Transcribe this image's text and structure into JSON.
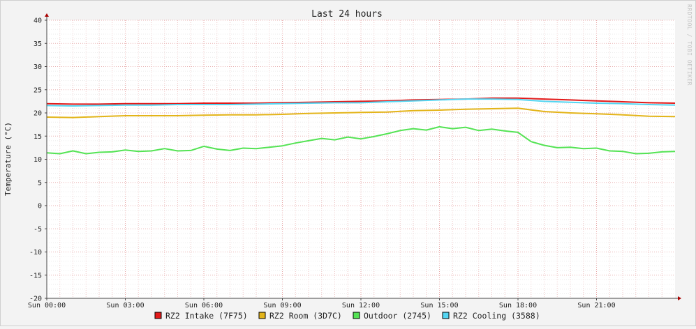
{
  "chart_data": {
    "type": "line",
    "title": "Last 24 hours",
    "ylabel": "Temperature (°C)",
    "xlabel": "",
    "watermark": "RRDTOOL / TOBI OETIKER",
    "ylim": [
      -20,
      40
    ],
    "y_ticks": [
      40,
      35,
      30,
      25,
      20,
      15,
      10,
      5,
      0,
      -5,
      -10,
      -15,
      -20
    ],
    "y_tick_labels": [
      "40",
      "35",
      "30",
      "25",
      "20",
      "15",
      "10",
      "5",
      "0",
      "-5",
      "-10",
      "-15",
      "-20"
    ],
    "xlim_hours": [
      0,
      24
    ],
    "x_ticks_hours": [
      0,
      3,
      6,
      9,
      12,
      15,
      18,
      21
    ],
    "x_tick_labels": [
      "Sun 00:00",
      "Sun 03:00",
      "Sun 06:00",
      "Sun 09:00",
      "Sun 12:00",
      "Sun 15:00",
      "Sun 18:00",
      "Sun 21:00"
    ],
    "grid": true,
    "legend_position": "bottom",
    "series": [
      {
        "name": "RZ2 Intake (7F75)",
        "color": "#e31919",
        "x": [
          0,
          1,
          2,
          3,
          4,
          5,
          6,
          7,
          8,
          9,
          10,
          11,
          12,
          13,
          14,
          15,
          16,
          17,
          18,
          19,
          20,
          21,
          22,
          23,
          24
        ],
        "values": [
          22.0,
          21.9,
          21.9,
          22.0,
          22.0,
          22.0,
          22.1,
          22.1,
          22.1,
          22.2,
          22.3,
          22.4,
          22.5,
          22.6,
          22.8,
          22.9,
          23.0,
          23.2,
          23.2,
          23.0,
          22.8,
          22.6,
          22.4,
          22.2,
          22.1
        ]
      },
      {
        "name": "RZ2 Room (3D7C)",
        "color": "#e3b419",
        "x": [
          0,
          1,
          2,
          3,
          4,
          5,
          6,
          7,
          8,
          9,
          10,
          11,
          12,
          13,
          14,
          15,
          16,
          17,
          18,
          19,
          20,
          21,
          22,
          23,
          24
        ],
        "values": [
          19.1,
          19.0,
          19.2,
          19.4,
          19.4,
          19.4,
          19.5,
          19.6,
          19.6,
          19.7,
          19.9,
          20.0,
          20.1,
          20.2,
          20.5,
          20.6,
          20.8,
          20.9,
          21.0,
          20.3,
          20.0,
          19.8,
          19.6,
          19.3,
          19.2
        ]
      },
      {
        "name": "Outdoor (2745)",
        "color": "#54e354",
        "x": [
          0,
          0.5,
          1,
          1.5,
          2,
          2.5,
          3,
          3.5,
          4,
          4.5,
          5,
          5.5,
          6,
          6.5,
          7,
          7.5,
          8,
          8.5,
          9,
          9.5,
          10,
          10.5,
          11,
          11.5,
          12,
          12.5,
          13,
          13.5,
          14,
          14.5,
          15,
          15.5,
          16,
          16.5,
          17,
          17.5,
          18,
          18.5,
          19,
          19.5,
          20,
          20.5,
          21,
          21.5,
          22,
          22.5,
          23,
          23.5,
          24
        ],
        "values": [
          11.4,
          11.2,
          11.8,
          11.2,
          11.5,
          11.6,
          12.0,
          11.7,
          11.8,
          12.3,
          11.8,
          11.9,
          12.8,
          12.2,
          11.9,
          12.4,
          12.3,
          12.6,
          12.9,
          13.5,
          14.0,
          14.5,
          14.2,
          14.8,
          14.4,
          14.9,
          15.5,
          16.2,
          16.6,
          16.3,
          17.0,
          16.6,
          16.9,
          16.2,
          16.5,
          16.1,
          15.8,
          13.8,
          13.0,
          12.5,
          12.6,
          12.3,
          12.4,
          11.8,
          11.7,
          11.2,
          11.3,
          11.6,
          11.7
        ]
      },
      {
        "name": "RZ2 Cooling (3588)",
        "color": "#54d6f2",
        "x": [
          0,
          1,
          2,
          3,
          4,
          5,
          6,
          7,
          8,
          9,
          10,
          11,
          12,
          13,
          14,
          15,
          16,
          17,
          18,
          19,
          20,
          21,
          22,
          23,
          24
        ],
        "values": [
          21.6,
          21.5,
          21.6,
          21.7,
          21.7,
          21.8,
          21.8,
          21.8,
          21.9,
          22.0,
          22.1,
          22.2,
          22.2,
          22.4,
          22.6,
          22.8,
          23.0,
          23.0,
          22.9,
          22.5,
          22.3,
          22.1,
          22.0,
          21.8,
          21.7
        ]
      }
    ]
  }
}
